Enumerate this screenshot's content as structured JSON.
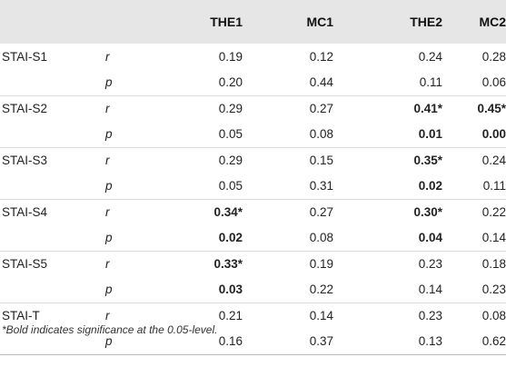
{
  "table": {
    "headers": [
      "",
      "",
      "THE1",
      "MC1",
      "THE2",
      "MC2"
    ],
    "rows": [
      {
        "measure": "STAI-S1",
        "stat": "r",
        "values": [
          {
            "v": "0.19",
            "b": false
          },
          {
            "v": "0.12",
            "b": false
          },
          {
            "v": "0.24",
            "b": false
          },
          {
            "v": "0.28",
            "b": false
          }
        ]
      },
      {
        "measure": "",
        "stat": "p",
        "values": [
          {
            "v": "0.20",
            "b": false
          },
          {
            "v": "0.44",
            "b": false
          },
          {
            "v": "0.11",
            "b": false
          },
          {
            "v": "0.06",
            "b": false
          }
        ]
      },
      {
        "measure": "STAI-S2",
        "stat": "r",
        "values": [
          {
            "v": "0.29",
            "b": false
          },
          {
            "v": "0.27",
            "b": false
          },
          {
            "v": "0.41*",
            "b": true
          },
          {
            "v": "0.45*",
            "b": true
          }
        ]
      },
      {
        "measure": "",
        "stat": "p",
        "values": [
          {
            "v": "0.05",
            "b": false
          },
          {
            "v": "0.08",
            "b": false
          },
          {
            "v": "0.01",
            "b": true
          },
          {
            "v": "0.00",
            "b": true
          }
        ]
      },
      {
        "measure": "STAI-S3",
        "stat": "r",
        "values": [
          {
            "v": "0.29",
            "b": false
          },
          {
            "v": "0.15",
            "b": false
          },
          {
            "v": "0.35*",
            "b": true
          },
          {
            "v": "0.24",
            "b": false
          }
        ]
      },
      {
        "measure": "",
        "stat": "p",
        "values": [
          {
            "v": "0.05",
            "b": false
          },
          {
            "v": "0.31",
            "b": false
          },
          {
            "v": "0.02",
            "b": true
          },
          {
            "v": "0.11",
            "b": false
          }
        ]
      },
      {
        "measure": "STAI-S4",
        "stat": "r",
        "values": [
          {
            "v": "0.34*",
            "b": true
          },
          {
            "v": "0.27",
            "b": false
          },
          {
            "v": "0.30*",
            "b": true
          },
          {
            "v": "0.22",
            "b": false
          }
        ]
      },
      {
        "measure": "",
        "stat": "p",
        "values": [
          {
            "v": "0.02",
            "b": true
          },
          {
            "v": "0.08",
            "b": false
          },
          {
            "v": "0.04",
            "b": true
          },
          {
            "v": "0.14",
            "b": false
          }
        ]
      },
      {
        "measure": "STAI-S5",
        "stat": "r",
        "values": [
          {
            "v": "0.33*",
            "b": true
          },
          {
            "v": "0.19",
            "b": false
          },
          {
            "v": "0.23",
            "b": false
          },
          {
            "v": "0.18",
            "b": false
          }
        ]
      },
      {
        "measure": "",
        "stat": "p",
        "values": [
          {
            "v": "0.03",
            "b": true
          },
          {
            "v": "0.22",
            "b": false
          },
          {
            "v": "0.14",
            "b": false
          },
          {
            "v": "0.23",
            "b": false
          }
        ]
      },
      {
        "measure": "STAI-T",
        "stat": "r",
        "values": [
          {
            "v": "0.21",
            "b": false
          },
          {
            "v": "0.14",
            "b": false
          },
          {
            "v": "0.23",
            "b": false
          },
          {
            "v": "0.08",
            "b": false
          }
        ]
      },
      {
        "measure": "",
        "stat": "p",
        "values": [
          {
            "v": "0.16",
            "b": false
          },
          {
            "v": "0.37",
            "b": false
          },
          {
            "v": "0.13",
            "b": false
          },
          {
            "v": "0.62",
            "b": false
          }
        ]
      }
    ]
  },
  "footnote": "*Bold indicates significance at the 0.05-level."
}
